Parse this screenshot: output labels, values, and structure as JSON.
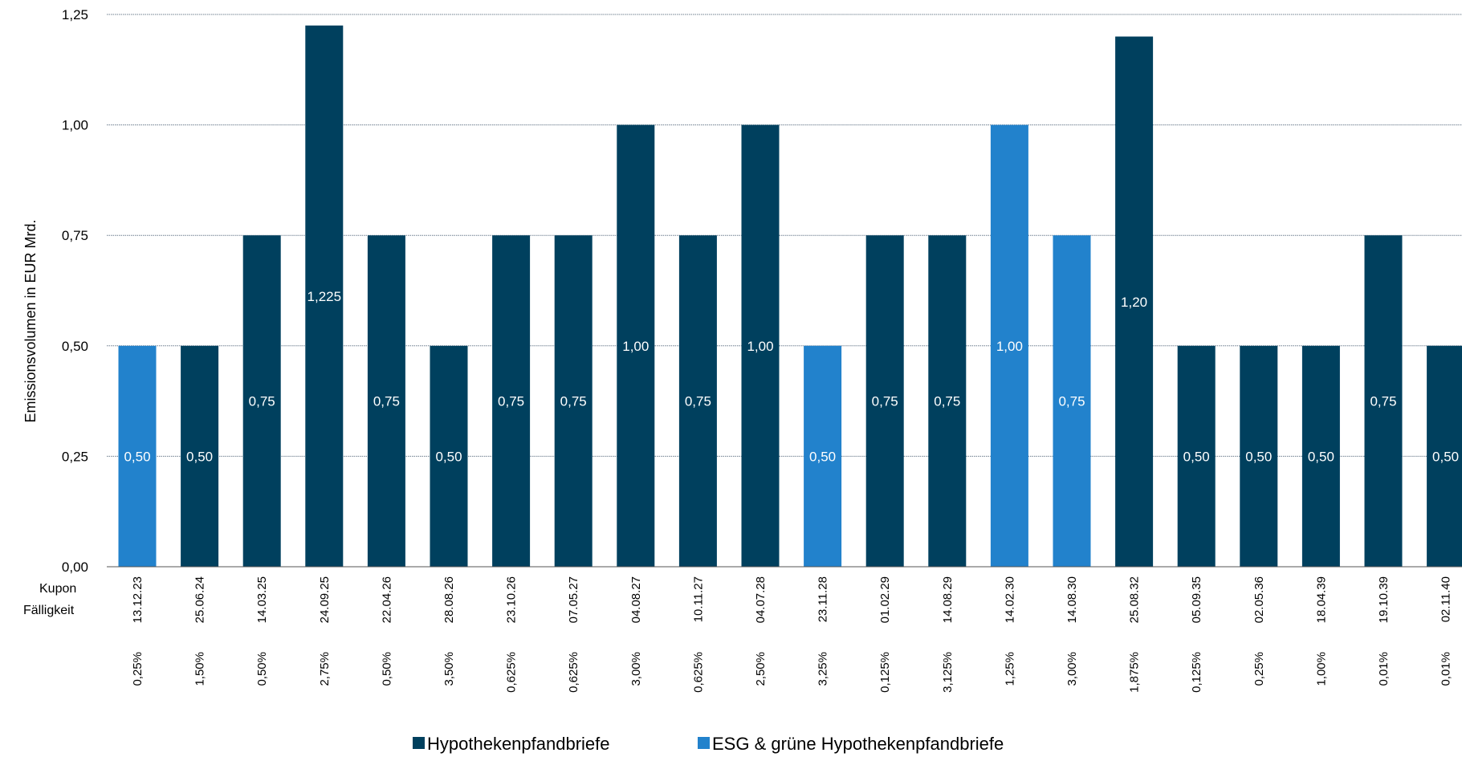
{
  "chart_data": {
    "type": "bar",
    "title": "",
    "ylabel": "Emissionsvolumen in EUR Mrd.",
    "ylim": [
      0,
      1.25
    ],
    "yticks": [
      0,
      0.25,
      0.5,
      0.75,
      1.0,
      1.25
    ],
    "ytick_labels": [
      "0,00",
      "0,25",
      "0,50",
      "0,75",
      "1,00",
      "1,25"
    ],
    "grid": true,
    "row_labels": [
      "Kupon",
      "Fälligkeit"
    ],
    "legend_placement": "bottom",
    "colors": {
      "Hypothekenpfandbriefe": "#00405e",
      "ESG & grüne Hypothekenpfandbriefe": "#2282cc"
    },
    "series": [
      {
        "name": "Hypothekenpfandbriefe"
      },
      {
        "name": "ESG & grüne Hypothekenpfandbriefe"
      }
    ],
    "bars": [
      {
        "date": "13.12.23",
        "coupon": "0,25%",
        "value": 0.5,
        "label": "0,50",
        "series": "ESG & grüne Hypothekenpfandbriefe"
      },
      {
        "date": "25.06.24",
        "coupon": "1,50%",
        "value": 0.5,
        "label": "0,50",
        "series": "Hypothekenpfandbriefe"
      },
      {
        "date": "14.03.25",
        "coupon": "0,50%",
        "value": 0.75,
        "label": "0,75",
        "series": "Hypothekenpfandbriefe"
      },
      {
        "date": "24.09.25",
        "coupon": "2,75%",
        "value": 1.225,
        "label": "1,225",
        "series": "Hypothekenpfandbriefe"
      },
      {
        "date": "22.04.26",
        "coupon": "0,50%",
        "value": 0.75,
        "label": "0,75",
        "series": "Hypothekenpfandbriefe"
      },
      {
        "date": "28.08.26",
        "coupon": "3,50%",
        "value": 0.5,
        "label": "0,50",
        "series": "Hypothekenpfandbriefe"
      },
      {
        "date": "23.10.26",
        "coupon": "0,625%",
        "value": 0.75,
        "label": "0,75",
        "series": "Hypothekenpfandbriefe"
      },
      {
        "date": "07.05.27",
        "coupon": "0,625%",
        "value": 0.75,
        "label": "0,75",
        "series": "Hypothekenpfandbriefe"
      },
      {
        "date": "04.08.27",
        "coupon": "3,00%",
        "value": 1.0,
        "label": "1,00",
        "series": "Hypothekenpfandbriefe"
      },
      {
        "date": "10.11.27",
        "coupon": "0,625%",
        "value": 0.75,
        "label": "0,75",
        "series": "Hypothekenpfandbriefe"
      },
      {
        "date": "04.07.28",
        "coupon": "2,50%",
        "value": 1.0,
        "label": "1,00",
        "series": "Hypothekenpfandbriefe"
      },
      {
        "date": "23.11.28",
        "coupon": "3,25%",
        "value": 0.5,
        "label": "0,50",
        "series": "ESG & grüne Hypothekenpfandbriefe"
      },
      {
        "date": "01.02.29",
        "coupon": "0,125%",
        "value": 0.75,
        "label": "0,75",
        "series": "Hypothekenpfandbriefe"
      },
      {
        "date": "14.08.29",
        "coupon": "3,125%",
        "value": 0.75,
        "label": "0,75",
        "series": "Hypothekenpfandbriefe"
      },
      {
        "date": "14.02.30",
        "coupon": "1,25%",
        "value": 1.0,
        "label": "1,00",
        "series": "ESG & grüne Hypothekenpfandbriefe"
      },
      {
        "date": "14.08.30",
        "coupon": "3,00%",
        "value": 0.75,
        "label": "0,75",
        "series": "ESG & grüne Hypothekenpfandbriefe"
      },
      {
        "date": "25.08.32",
        "coupon": "1,875%",
        "value": 1.2,
        "label": "1,20",
        "series": "Hypothekenpfandbriefe"
      },
      {
        "date": "05.09.35",
        "coupon": "0,125%",
        "value": 0.5,
        "label": "0,50",
        "series": "Hypothekenpfandbriefe"
      },
      {
        "date": "02.05.36",
        "coupon": "0,25%",
        "value": 0.5,
        "label": "0,50",
        "series": "Hypothekenpfandbriefe"
      },
      {
        "date": "18.04.39",
        "coupon": "1,00%",
        "value": 0.5,
        "label": "0,50",
        "series": "Hypothekenpfandbriefe"
      },
      {
        "date": "19.10.39",
        "coupon": "0,01%",
        "value": 0.75,
        "label": "0,75",
        "series": "Hypothekenpfandbriefe"
      },
      {
        "date": "02.11.40",
        "coupon": "0,01%",
        "value": 0.5,
        "label": "0,50",
        "series": "Hypothekenpfandbriefe"
      }
    ]
  }
}
